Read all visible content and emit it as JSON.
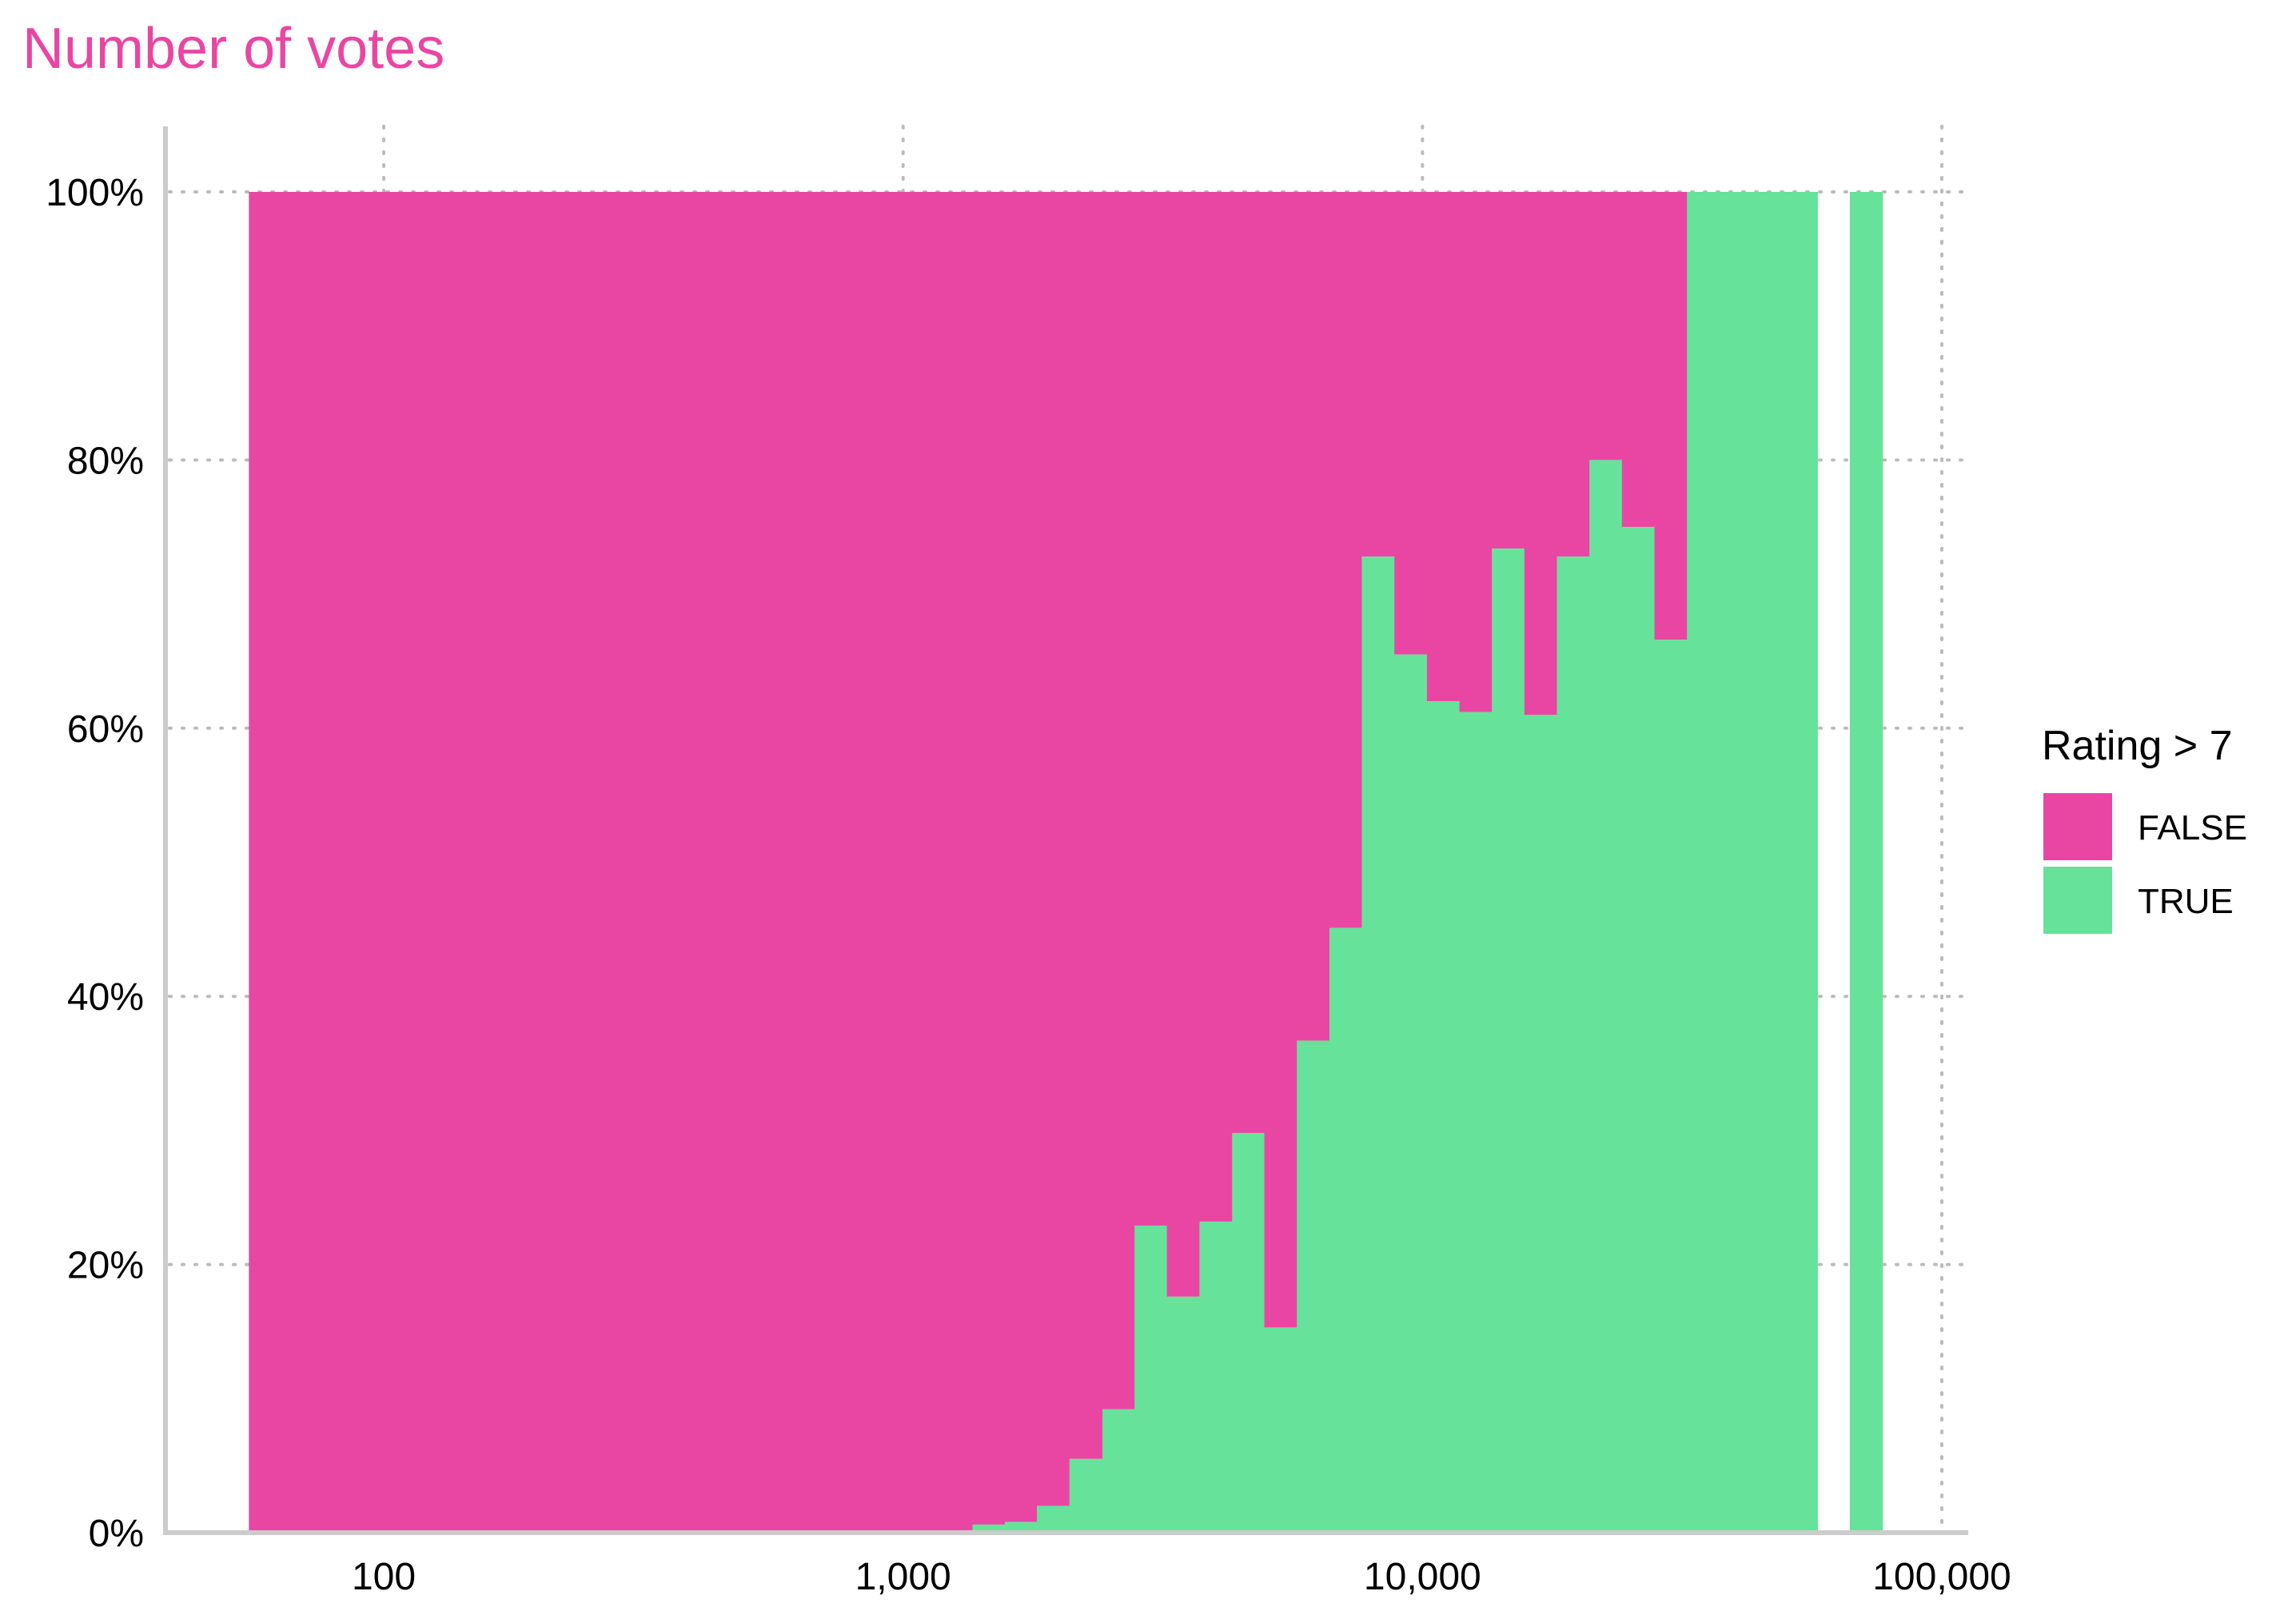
{
  "chart_data": {
    "type": "histogram-fill",
    "title": "Number of votes",
    "xscale": "log10",
    "xlim": [
      40,
      100000
    ],
    "ylim": [
      0,
      1
    ],
    "x_ticks": [
      {
        "value": 100,
        "label": "100"
      },
      {
        "value": 1000,
        "label": "1,000"
      },
      {
        "value": 10000,
        "label": "10,000"
      },
      {
        "value": 100000,
        "label": "100,000"
      }
    ],
    "y_ticks": [
      {
        "value": 0,
        "label": "0%"
      },
      {
        "value": 0.2,
        "label": "20%"
      },
      {
        "value": 0.4,
        "label": "40%"
      },
      {
        "value": 0.6,
        "label": "60%"
      },
      {
        "value": 0.8,
        "label": "80%"
      },
      {
        "value": 1.0,
        "label": "100%"
      }
    ],
    "grid": "dotted",
    "legend": {
      "title": "Rating > 7",
      "placement": "right",
      "items": [
        {
          "label": "FALSE",
          "color": "#E946A4"
        },
        {
          "label": "TRUE",
          "color": "#66E29A"
        }
      ]
    },
    "colors": {
      "false": "#E946A4",
      "true": "#66E29A",
      "axis": "#CCCCCC",
      "grid": "#BBBBBB"
    },
    "bins": [
      {
        "x0": 55,
        "x1": 1360,
        "true_share": 0.0
      },
      {
        "x0": 1360,
        "x1": 1570,
        "true_share": 0.006
      },
      {
        "x0": 1570,
        "x1": 1810,
        "true_share": 0.008
      },
      {
        "x0": 1810,
        "x1": 2090,
        "true_share": 0.02
      },
      {
        "x0": 2090,
        "x1": 2420,
        "true_share": 0.055
      },
      {
        "x0": 2420,
        "x1": 2790,
        "true_share": 0.092
      },
      {
        "x0": 2790,
        "x1": 3220,
        "true_share": 0.229
      },
      {
        "x0": 3220,
        "x1": 3720,
        "true_share": 0.176
      },
      {
        "x0": 3720,
        "x1": 4300,
        "true_share": 0.232
      },
      {
        "x0": 4300,
        "x1": 4960,
        "true_share": 0.298
      },
      {
        "x0": 4960,
        "x1": 5730,
        "true_share": 0.153
      },
      {
        "x0": 5730,
        "x1": 6620,
        "true_share": 0.367
      },
      {
        "x0": 6620,
        "x1": 7640,
        "true_share": 0.451
      },
      {
        "x0": 7640,
        "x1": 8830,
        "true_share": 0.728
      },
      {
        "x0": 8830,
        "x1": 10200,
        "true_share": 0.655
      },
      {
        "x0": 10200,
        "x1": 11780,
        "true_share": 0.62
      },
      {
        "x0": 11780,
        "x1": 13600,
        "true_share": 0.612
      },
      {
        "x0": 13600,
        "x1": 15710,
        "true_share": 0.734
      },
      {
        "x0": 15710,
        "x1": 18150,
        "true_share": 0.61
      },
      {
        "x0": 18150,
        "x1": 20960,
        "true_share": 0.728
      },
      {
        "x0": 20960,
        "x1": 24210,
        "true_share": 0.8
      },
      {
        "x0": 24210,
        "x1": 27970,
        "true_share": 0.75
      },
      {
        "x0": 27970,
        "x1": 32300,
        "true_share": 0.666
      },
      {
        "x0": 32300,
        "x1": 57600,
        "true_share": 1.0
      },
      {
        "x0": 66500,
        "x1": 76800,
        "true_share": 1.0
      }
    ]
  }
}
